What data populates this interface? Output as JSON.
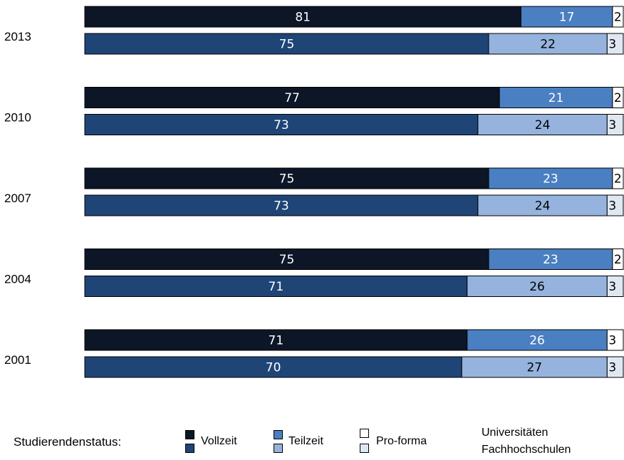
{
  "chart_data": {
    "type": "bar",
    "orientation": "horizontal",
    "stacked": "percent",
    "categories": [
      "2013",
      "2010",
      "2007",
      "2004",
      "2001"
    ],
    "groups": [
      {
        "name": "Universitäten",
        "series": [
          {
            "name": "Vollzeit",
            "values": [
              81,
              77,
              75,
              75,
              71
            ]
          },
          {
            "name": "Teilzeit",
            "values": [
              17,
              21,
              23,
              23,
              26
            ]
          },
          {
            "name": "Pro-forma",
            "values": [
              2,
              2,
              2,
              2,
              3
            ]
          }
        ]
      },
      {
        "name": "Fachhochschulen",
        "series": [
          {
            "name": "Vollzeit",
            "values": [
              75,
              73,
              73,
              71,
              70
            ]
          },
          {
            "name": "Teilzeit",
            "values": [
              22,
              24,
              24,
              26,
              27
            ]
          },
          {
            "name": "Pro-forma",
            "values": [
              3,
              3,
              3,
              3,
              3
            ]
          }
        ]
      }
    ],
    "xlim": [
      0,
      100
    ],
    "grid": false,
    "legend_position": "bottom"
  },
  "colors": {
    "uni": [
      "#0d1626",
      "#4a7fc1",
      "#ffffff"
    ],
    "fh": [
      "#1f4577",
      "#95b3dd",
      "#dfe7f2"
    ],
    "label_light": "#ffffff",
    "label_dark": "#000000"
  },
  "legend": {
    "title": "Studierendenstatus:",
    "items": [
      "Vollzeit",
      "Teilzeit",
      "Pro-forma"
    ],
    "group_labels": [
      "Universitäten",
      "Fachhochschulen"
    ]
  }
}
